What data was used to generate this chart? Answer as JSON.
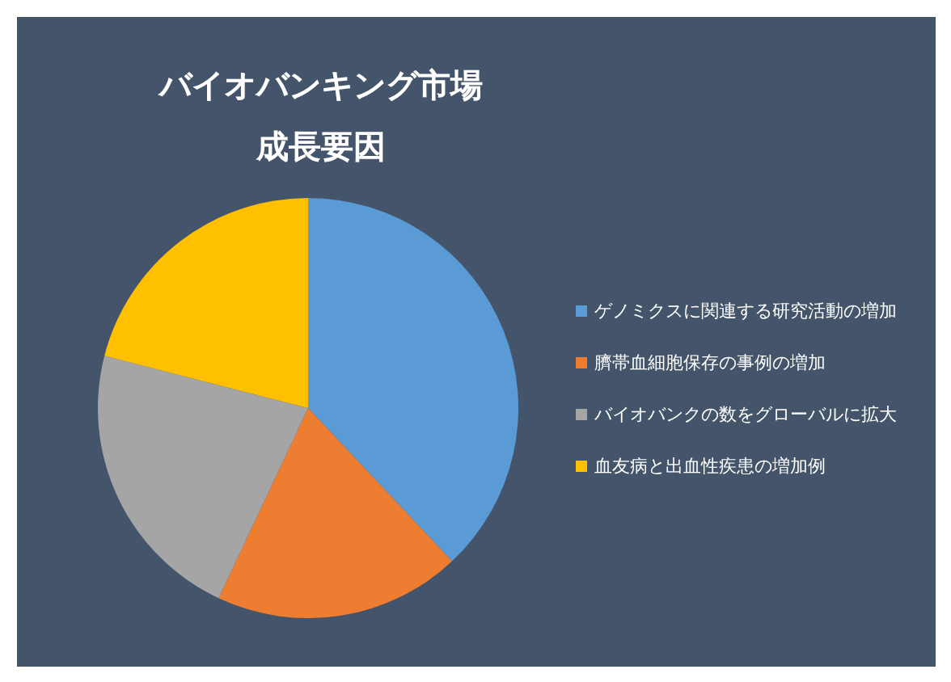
{
  "chart_data": {
    "type": "pie",
    "title": "バイオバンキング市場",
    "subtitle": "成長要因",
    "categories": [
      "ゲノミクスに関連する研究活動の増加",
      "臍帯血細胞保存の事例の増加",
      "バイオバンクの数をグローバルに拡大",
      "血友病と出血性疾患の増加例"
    ],
    "values": [
      38,
      19,
      22,
      21
    ],
    "colors": [
      "#5b9bd5",
      "#ed7d31",
      "#a5a5a5",
      "#ffc000"
    ],
    "legend": "right"
  }
}
